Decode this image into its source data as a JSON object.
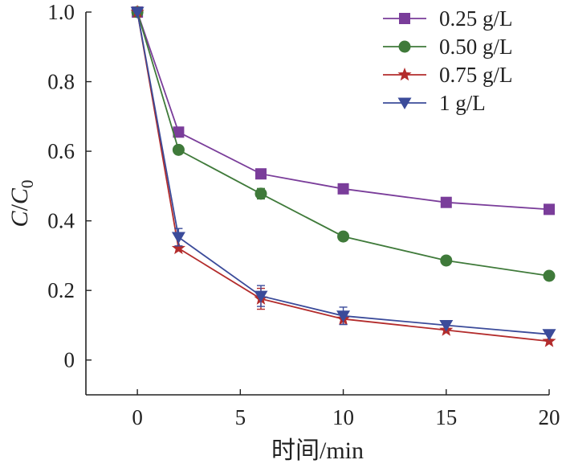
{
  "chart_data": {
    "type": "line",
    "title": "",
    "xlabel": "时间/min",
    "ylabel_main": "C",
    "ylabel_sep": "/",
    "ylabel_den": "C",
    "ylabel_sub": "0",
    "xlim": [
      -2.5,
      20
    ],
    "ylim": [
      -0.1,
      1.0
    ],
    "xticks": [
      0,
      5,
      10,
      15,
      20
    ],
    "xtick_labels": [
      "0",
      "5",
      "10",
      "15",
      "20"
    ],
    "yticks": [
      0,
      0.2,
      0.4,
      0.6,
      0.8,
      1.0
    ],
    "ytick_labels": [
      "0",
      "0.2",
      "0.4",
      "0.6",
      "0.8",
      "1.0"
    ],
    "grid": false,
    "legend_position": "top-right",
    "x": [
      0,
      2,
      6,
      10,
      15,
      20
    ],
    "series": [
      {
        "name": "0.25 g/L",
        "values": [
          1.0,
          0.655,
          0.535,
          0.492,
          0.453,
          0.433
        ],
        "errors": [
          0,
          0,
          0,
          0,
          0,
          0
        ],
        "color": "#7a3d9a",
        "marker": "square"
      },
      {
        "name": "0.50 g/L",
        "values": [
          1.0,
          0.604,
          0.478,
          0.355,
          0.286,
          0.242
        ],
        "errors": [
          0,
          0,
          0.015,
          0,
          0,
          0
        ],
        "color": "#3f7a3a",
        "marker": "circle"
      },
      {
        "name": "0.75 g/L",
        "values": [
          1.0,
          0.321,
          0.176,
          0.118,
          0.086,
          0.054
        ],
        "errors": [
          0,
          0,
          0.03,
          0.015,
          0,
          0
        ],
        "color": "#b32c2c",
        "marker": "star"
      },
      {
        "name": "1 g/L",
        "values": [
          1.0,
          0.353,
          0.184,
          0.127,
          0.1,
          0.074
        ],
        "errors": [
          0,
          0.025,
          0.03,
          0.025,
          0,
          0
        ],
        "color": "#3b4b9a",
        "marker": "triangle-down"
      }
    ]
  }
}
